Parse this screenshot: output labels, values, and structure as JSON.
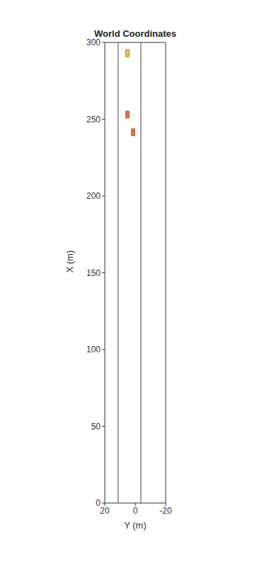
{
  "chart_data": {
    "type": "scatter",
    "title": "World Coordinates",
    "xlabel": "Y (m)",
    "ylabel": "X (m)",
    "xlim": [
      20,
      -20
    ],
    "xticks": [
      20,
      0,
      -20
    ],
    "ylim": [
      0,
      300
    ],
    "yticks": [
      0,
      50,
      100,
      150,
      200,
      250,
      300
    ],
    "grid": false,
    "series": [
      {
        "type": "line",
        "color": "#404040",
        "x": [
          11.2,
          11.2
        ],
        "y": [
          0,
          300
        ]
      },
      {
        "type": "line",
        "color": "#404040",
        "x": [
          -3.7,
          -3.7
        ],
        "y": [
          0,
          300
        ]
      },
      {
        "type": "scatter",
        "marker": "rectangle",
        "color": "#f0c23c",
        "x": [
          5.1
        ],
        "y": [
          293
        ]
      },
      {
        "type": "scatter",
        "marker": "rectangle",
        "color": "#e2703a",
        "x": [
          5.1,
          1.4
        ],
        "y": [
          253,
          241.5
        ]
      }
    ]
  }
}
